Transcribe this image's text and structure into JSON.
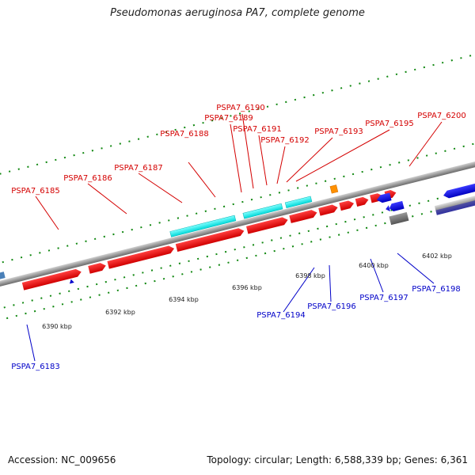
{
  "title": "Pseudomonas aeruginosa PA7, complete genome",
  "footer": {
    "accession": "Accession: NC_009656",
    "topology": "Topology: circular; Length: 6,588,339 bp; Genes: 6,361"
  },
  "colors": {
    "forward_label": "#d40000",
    "reverse_label": "#0000c8",
    "forward_gene": "#ee0000",
    "forward_feature": "#00e6e6",
    "reverse_gene": "#0000ee",
    "backbone": "#888888",
    "tick_dots": "#118811"
  },
  "axis_ticks": [
    "6390 kbp",
    "6392 kbp",
    "6394 kbp",
    "6396 kbp",
    "6398 kbp",
    "6400 kbp",
    "6402 kbp"
  ],
  "forward_labels": [
    "PSPA7_6185",
    "PSPA7_6186",
    "PSPA7_6187",
    "PSPA7_6188",
    "PSPA7_6189",
    "PSPA7_6190",
    "PSPA7_6191",
    "PSPA7_6192",
    "PSPA7_6193",
    "PSPA7_6195",
    "PSPA7_6200"
  ],
  "reverse_labels": [
    "PSPA7_6183",
    "PSPA7_6194",
    "PSPA7_6196",
    "PSPA7_6197",
    "PSPA7_6198"
  ]
}
